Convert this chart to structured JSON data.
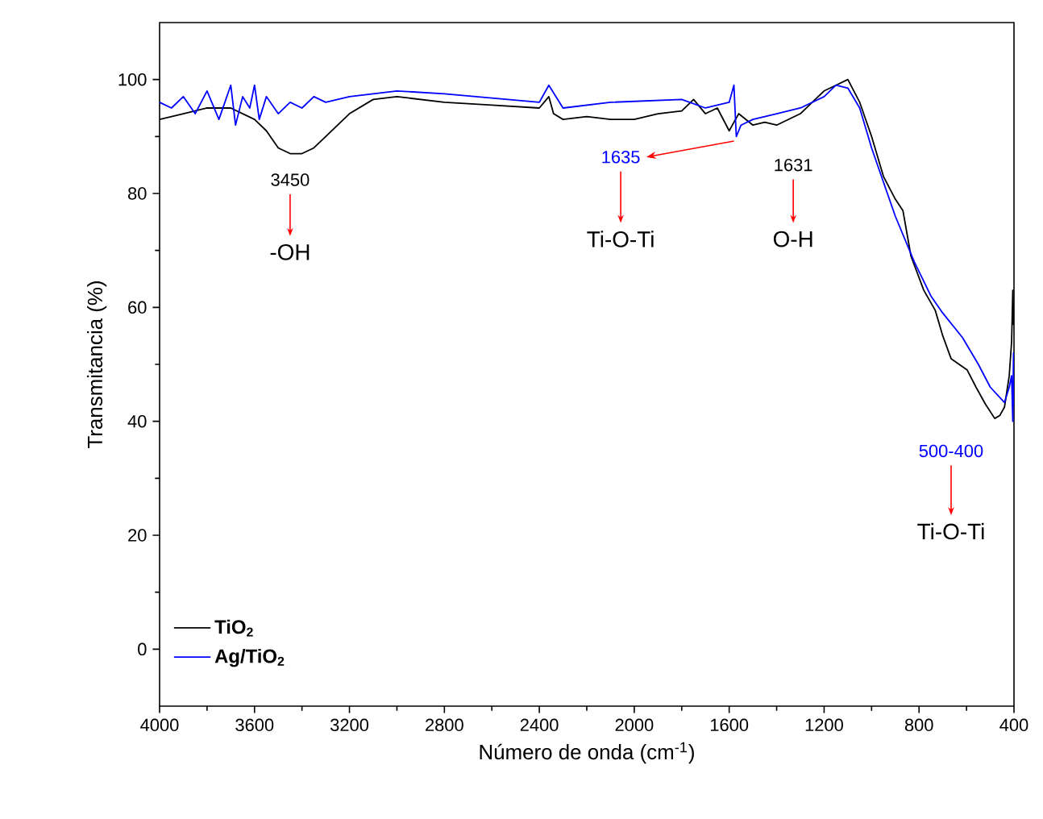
{
  "chart_data": {
    "type": "line",
    "xlabel": "Número de onda (cm$^{-1}$)",
    "ylabel": "Transmitancia (%)",
    "xlim": [
      4000,
      400
    ],
    "ylim": [
      -10,
      110
    ],
    "xticks": [
      4000,
      3600,
      3200,
      2800,
      2400,
      2000,
      1600,
      1200,
      800,
      400
    ],
    "yticks": [
      0,
      20,
      40,
      60,
      80,
      100
    ],
    "legend": "bottom left",
    "grid": false,
    "marker": "none",
    "line_style": "solid",
    "series": [
      {
        "name": "TiO$_{2}$",
        "color": "#000000",
        "x": [
          4000,
          3900,
          3800,
          3700,
          3600,
          3550,
          3500,
          3450,
          3400,
          3350,
          3300,
          3200,
          3100,
          3000,
          2800,
          2600,
          2400,
          2360,
          2340,
          2300,
          2200,
          2100,
          2000,
          1900,
          1800,
          1750,
          1700,
          1650,
          1600,
          1560,
          1500,
          1450,
          1400,
          1300,
          1250,
          1200,
          1150,
          1100,
          1050,
          1000,
          950,
          900,
          868,
          834,
          780,
          732,
          700,
          665,
          597,
          560,
          520,
          481,
          460,
          440,
          420,
          410,
          405,
          402,
          400
        ],
        "values": [
          93,
          94,
          95,
          95,
          93,
          91,
          88,
          87,
          87,
          88,
          90,
          94,
          96.5,
          97,
          96,
          95.5,
          95,
          97,
          94,
          93,
          93.5,
          93,
          93,
          94,
          94.5,
          96.5,
          94,
          95,
          91,
          94,
          92,
          92.5,
          92,
          94,
          96,
          98,
          99,
          100,
          96,
          90,
          83,
          79,
          77,
          69,
          63,
          59.5,
          55,
          51,
          49,
          46,
          43,
          40.5,
          41,
          42.5,
          48,
          54,
          63,
          57,
          58
        ]
      },
      {
        "name": "Ag/TiO$_{2}$",
        "color": "#0000ff",
        "x": [
          4000,
          3950,
          3900,
          3850,
          3800,
          3750,
          3700,
          3680,
          3650,
          3620,
          3600,
          3580,
          3550,
          3500,
          3450,
          3400,
          3350,
          3300,
          3200,
          3000,
          2800,
          2400,
          2360,
          2300,
          2100,
          1800,
          1700,
          1600,
          1580,
          1570,
          1550,
          1500,
          1400,
          1300,
          1200,
          1150,
          1100,
          1050,
          1000,
          900,
          820,
          750,
          700,
          617,
          550,
          500,
          440,
          420,
          410,
          405,
          402,
          400
        ],
        "values": [
          96,
          95,
          97,
          94,
          98,
          93,
          99,
          92,
          97,
          95,
          99,
          93,
          97,
          94,
          96,
          95,
          97,
          96,
          97,
          98,
          97.5,
          96,
          99,
          95,
          96,
          96.5,
          95,
          96,
          99,
          90,
          92,
          93,
          94,
          95,
          97,
          99,
          98.5,
          95,
          88,
          76,
          68,
          62,
          59,
          54.7,
          50,
          46,
          43.3,
          46,
          48,
          40,
          52,
          43
        ]
      }
    ],
    "annotations": [
      "3450",
      "-OH",
      "1635",
      "Ti-O-Ti",
      "1631",
      "O-H",
      "500-400",
      "Ti-O-Ti"
    ]
  }
}
